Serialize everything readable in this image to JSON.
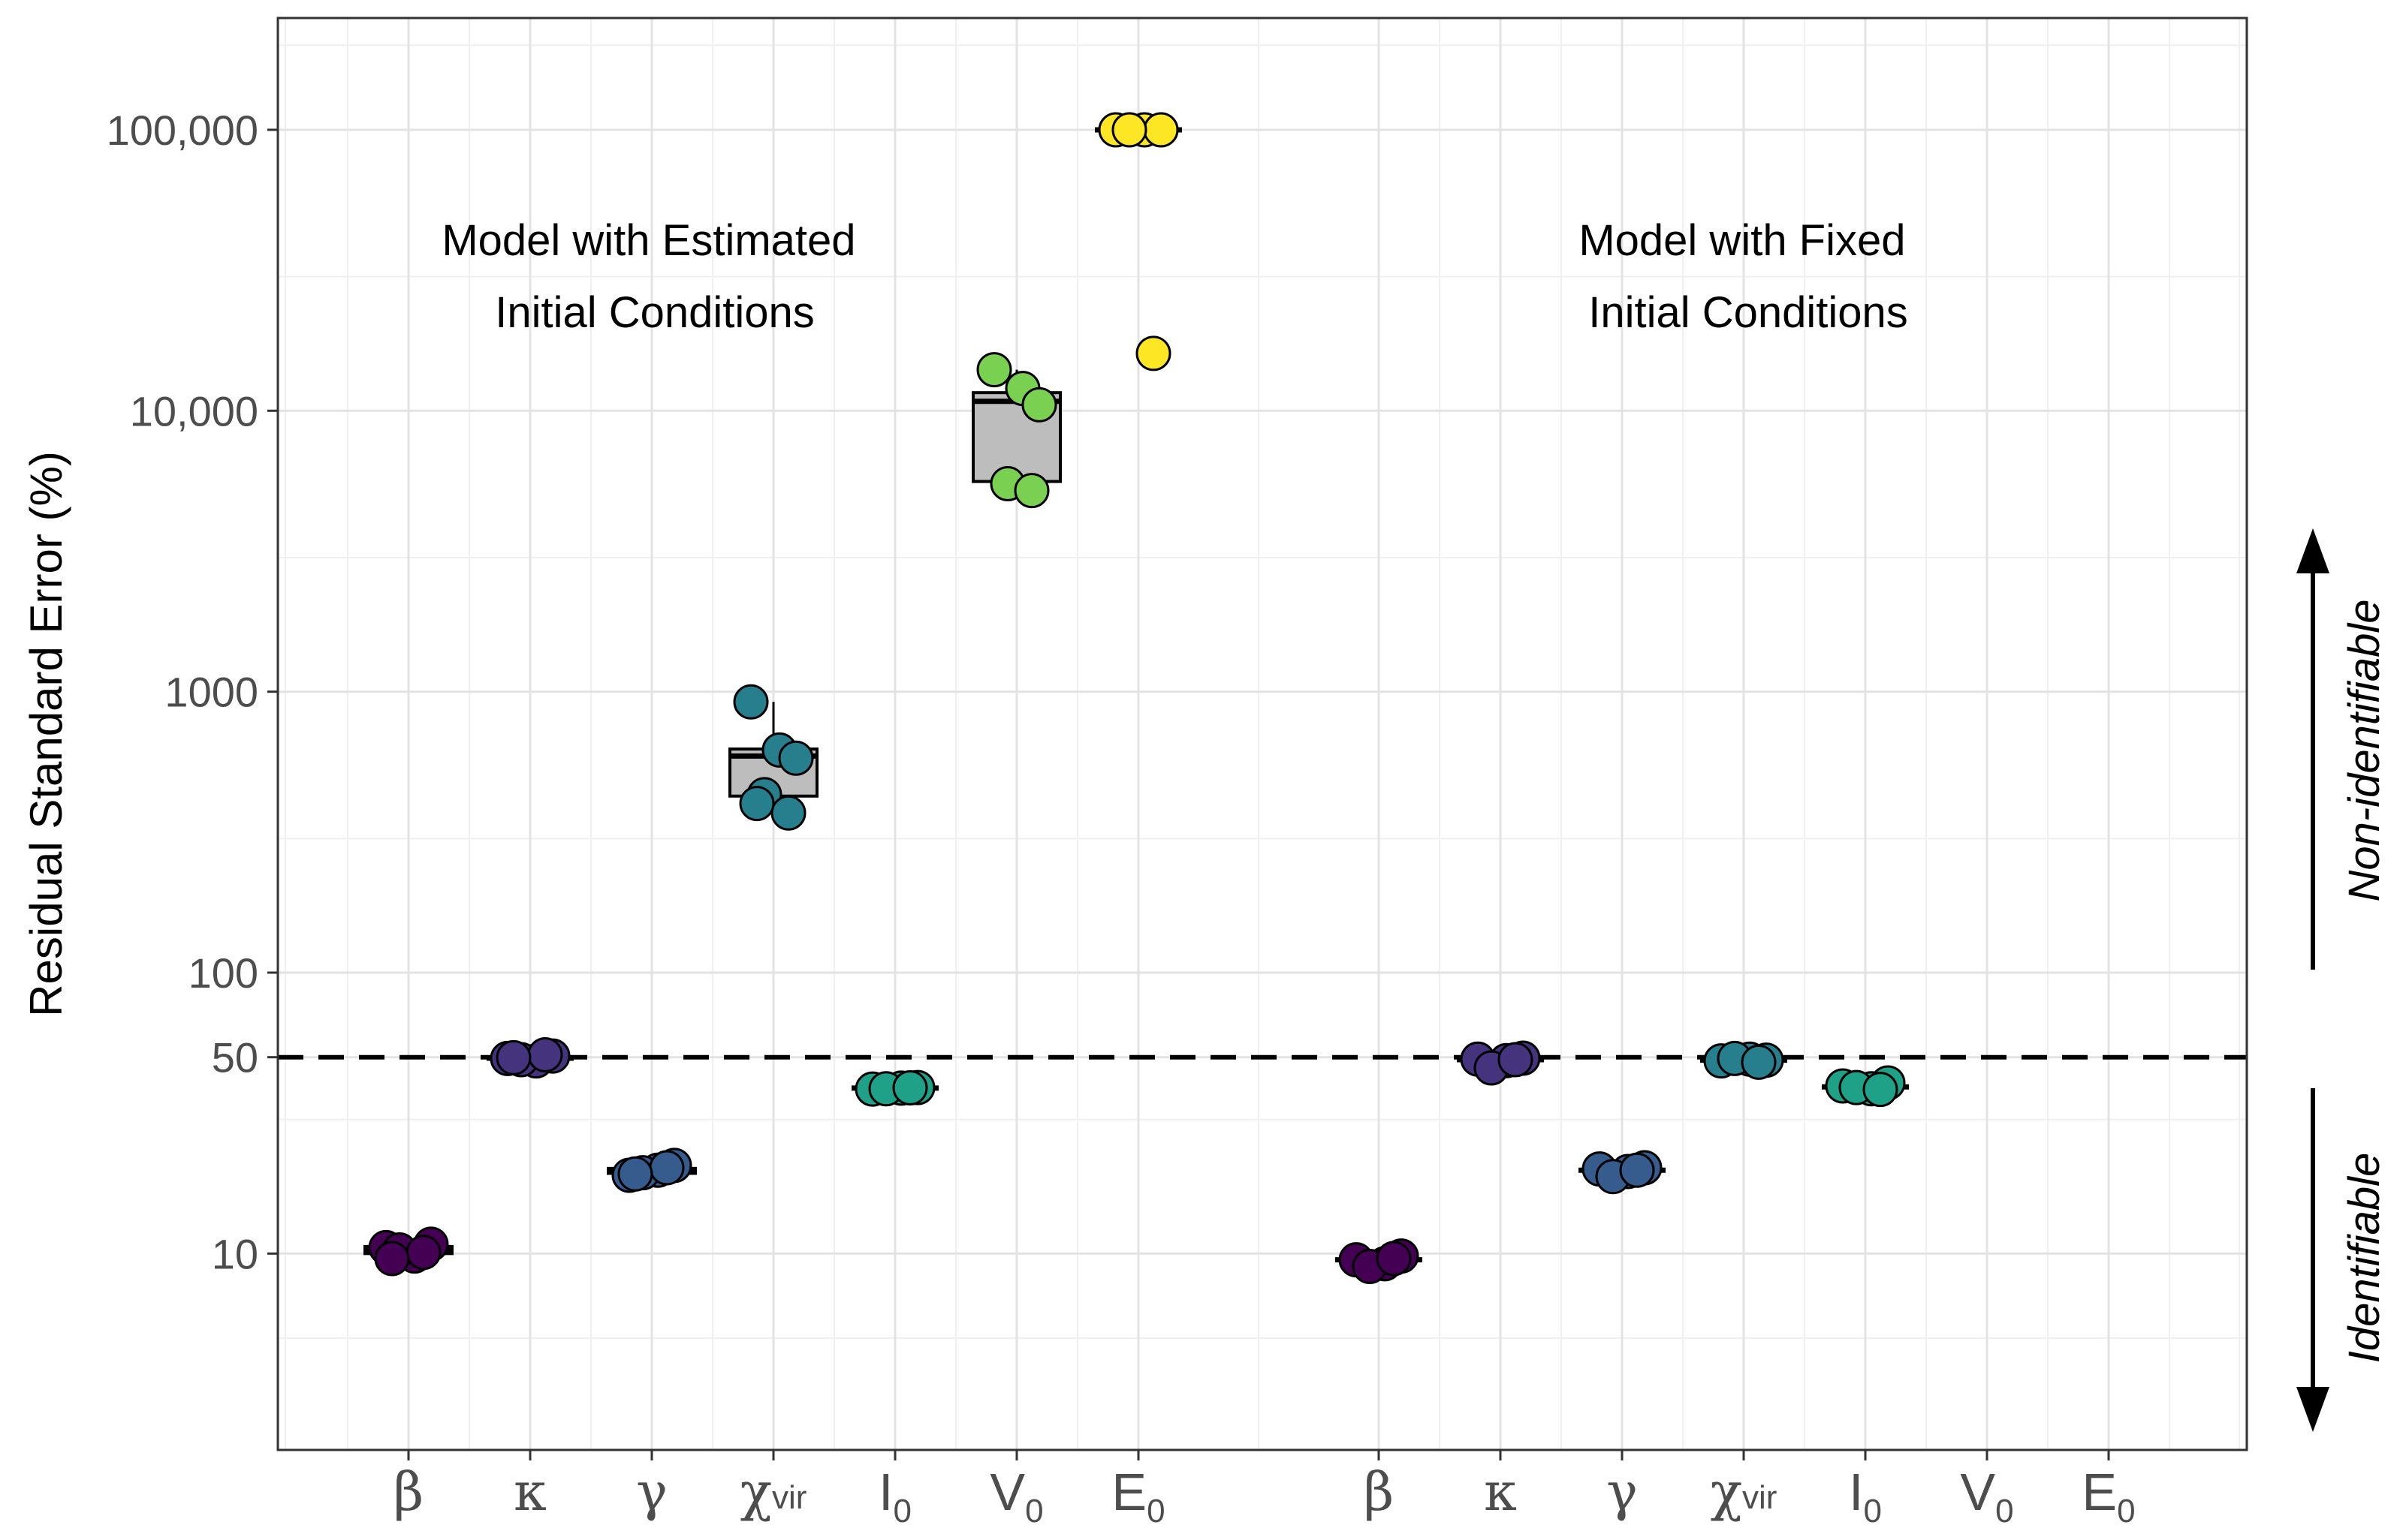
{
  "chart_data": {
    "type": "box-dot",
    "title": "",
    "ylabel": "Residual Standard Error (%)",
    "xlabel": "",
    "y_scale": "log10",
    "ylim": [
      2,
      250000
    ],
    "y_ticks": [
      {
        "value": 10,
        "label": "10"
      },
      {
        "value": 50,
        "label": "50"
      },
      {
        "value": 100,
        "label": "100"
      },
      {
        "value": 1000,
        "label": "1000"
      },
      {
        "value": 10000,
        "label": "10,000"
      },
      {
        "value": 100000,
        "label": "100,000"
      }
    ],
    "threshold": {
      "value": 50,
      "style": "dashed"
    },
    "annotations": [
      {
        "lines": [
          "Model with Estimated",
          "Initial Conditions"
        ],
        "group": "estimated"
      },
      {
        "lines": [
          "Model with Fixed",
          "Initial Conditions"
        ],
        "group": "fixed"
      }
    ],
    "side_labels": {
      "upper": "Non-identifiable",
      "lower": "Identifiable"
    },
    "categories": [
      {
        "key": "est-beta",
        "label": "β",
        "sub": "",
        "group": "estimated"
      },
      {
        "key": "est-kappa",
        "label": "κ",
        "sub": "",
        "group": "estimated"
      },
      {
        "key": "est-gamma",
        "label": "γ",
        "sub": "",
        "group": "estimated"
      },
      {
        "key": "est-chivir",
        "label": "χ",
        "sub": "vir",
        "group": "estimated"
      },
      {
        "key": "est-i0",
        "label": "I",
        "sub": "0",
        "group": "estimated"
      },
      {
        "key": "est-v0",
        "label": "V",
        "sub": "0",
        "group": "estimated"
      },
      {
        "key": "est-e0",
        "label": "E",
        "sub": "0",
        "group": "estimated"
      },
      {
        "key": "fix-beta",
        "label": "β",
        "sub": "",
        "group": "fixed"
      },
      {
        "key": "fix-kappa",
        "label": "κ",
        "sub": "",
        "group": "fixed"
      },
      {
        "key": "fix-gamma",
        "label": "γ",
        "sub": "",
        "group": "fixed"
      },
      {
        "key": "fix-chivir",
        "label": "χ",
        "sub": "vir",
        "group": "fixed"
      },
      {
        "key": "fix-i0",
        "label": "I",
        "sub": "0",
        "group": "fixed"
      },
      {
        "key": "fix-v0",
        "label": "V",
        "sub": "0",
        "group": "fixed"
      },
      {
        "key": "fix-e0",
        "label": "E",
        "sub": "0",
        "group": "fixed"
      }
    ],
    "series": [
      {
        "name": "β",
        "group": "estimated",
        "color": "#440154",
        "values": [
          10.5,
          9.8,
          10.8,
          10.3,
          10.1,
          9.6
        ],
        "box": {
          "q1": 10.0,
          "median": 10.3,
          "q3": 10.6
        }
      },
      {
        "name": "κ",
        "group": "estimated",
        "color": "#46337e",
        "values": [
          49.5,
          48.5,
          50.5,
          49.0,
          51.0,
          49.8
        ],
        "box": {
          "q1": 49.0,
          "median": 49.6,
          "q3": 50.2
        }
      },
      {
        "name": "γ",
        "group": "estimated",
        "color": "#365c8d",
        "values": [
          19.0,
          19.8,
          20.6,
          19.4,
          20.2,
          19.2
        ],
        "box": {
          "q1": 19.3,
          "median": 19.7,
          "q3": 20.1
        }
      },
      {
        "name": "χvir",
        "group": "estimated",
        "color": "#277f8e",
        "values": [
          920,
          620,
          580,
          430,
          370,
          400
        ],
        "box": {
          "q1": 425,
          "median": 590,
          "q3": 625
        }
      },
      {
        "name": "I0",
        "group": "estimated",
        "color": "#1fa187",
        "values": [
          38.5,
          38.8,
          39.0,
          38.6,
          38.9
        ],
        "box": {
          "q1": 38.6,
          "median": 38.8,
          "q3": 39.0
        }
      },
      {
        "name": "V0",
        "group": "estimated",
        "color": "#7ad151",
        "values": [
          14000,
          12000,
          10500,
          5500,
          5200
        ],
        "box": {
          "q1": 5600,
          "median": 10800,
          "q3": 11600
        }
      },
      {
        "name": "E0",
        "group": "estimated",
        "color": "#fde725",
        "values": [
          100000,
          100000,
          100000,
          100000,
          16000
        ],
        "box": {
          "q1": 100000,
          "median": 100000,
          "q3": 100000
        }
      },
      {
        "name": "β",
        "group": "fixed",
        "color": "#440154",
        "values": [
          9.5,
          9.2,
          9.8,
          9.0,
          9.6
        ],
        "box": {
          "q1": 9.3,
          "median": 9.5,
          "q3": 9.6
        }
      },
      {
        "name": "κ",
        "group": "fixed",
        "color": "#46337e",
        "values": [
          49.2,
          48.6,
          49.6,
          45.8,
          49.0
        ],
        "box": {
          "q1": 48.6,
          "median": 49.0,
          "q3": 49.4
        }
      },
      {
        "name": "γ",
        "group": "fixed",
        "color": "#365c8d",
        "values": [
          20.0,
          19.6,
          20.2,
          18.8,
          19.8
        ],
        "box": {
          "q1": 19.5,
          "median": 19.8,
          "q3": 20.0
        }
      },
      {
        "name": "χvir",
        "group": "fixed",
        "color": "#277f8e",
        "values": [
          48.5,
          49.2,
          48.8,
          49.5,
          48.0
        ],
        "box": {
          "q1": 48.4,
          "median": 48.8,
          "q3": 49.2
        }
      },
      {
        "name": "I0",
        "group": "fixed",
        "color": "#1fa187",
        "values": [
          39.5,
          38.6,
          40.5,
          39.0,
          38.4
        ],
        "box": {
          "q1": 38.8,
          "median": 39.2,
          "q3": 39.8
        }
      },
      {
        "name": "V0",
        "group": "fixed",
        "color": "#7ad151",
        "values": [],
        "box": null
      },
      {
        "name": "E0",
        "group": "fixed",
        "color": "#fde725",
        "values": [],
        "box": null
      }
    ],
    "grid": true,
    "legend": "none"
  }
}
